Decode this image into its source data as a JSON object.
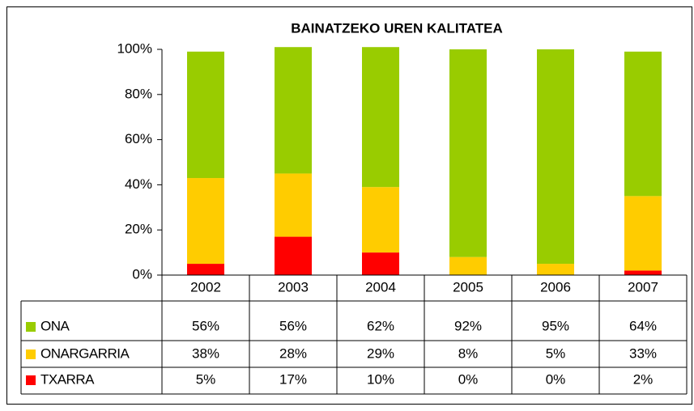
{
  "chart_data": {
    "type": "stacked_bar",
    "title": "BAINATZEKO UREN KALITATEA",
    "categories": [
      "2002",
      "2003",
      "2004",
      "2005",
      "2006",
      "2007"
    ],
    "series": [
      {
        "name": "ONA",
        "color": "#99cc00",
        "values": [
          56,
          56,
          62,
          92,
          95,
          64
        ],
        "value_labels": [
          "56%",
          "56%",
          "62%",
          "92%",
          "95%",
          "64%"
        ]
      },
      {
        "name": "ONARGARRIA",
        "color": "#ffcc00",
        "values": [
          38,
          28,
          29,
          8,
          5,
          33
        ],
        "value_labels": [
          "38%",
          "28%",
          "29%",
          "8%",
          "5%",
          "33%"
        ]
      },
      {
        "name": "TXARRA",
        "color": "#ff0000",
        "values": [
          5,
          17,
          10,
          0,
          0,
          2
        ],
        "value_labels": [
          "5%",
          "17%",
          "10%",
          "0%",
          "0%",
          "2%"
        ]
      }
    ],
    "ylim": [
      0,
      100
    ],
    "yticks": [
      {
        "value": 0,
        "label": "0%"
      },
      {
        "value": 20,
        "label": "20%"
      },
      {
        "value": 40,
        "label": "40%"
      },
      {
        "value": 60,
        "label": "60%"
      },
      {
        "value": 80,
        "label": "80%"
      },
      {
        "value": 100,
        "label": "100%"
      }
    ],
    "grid": false
  }
}
